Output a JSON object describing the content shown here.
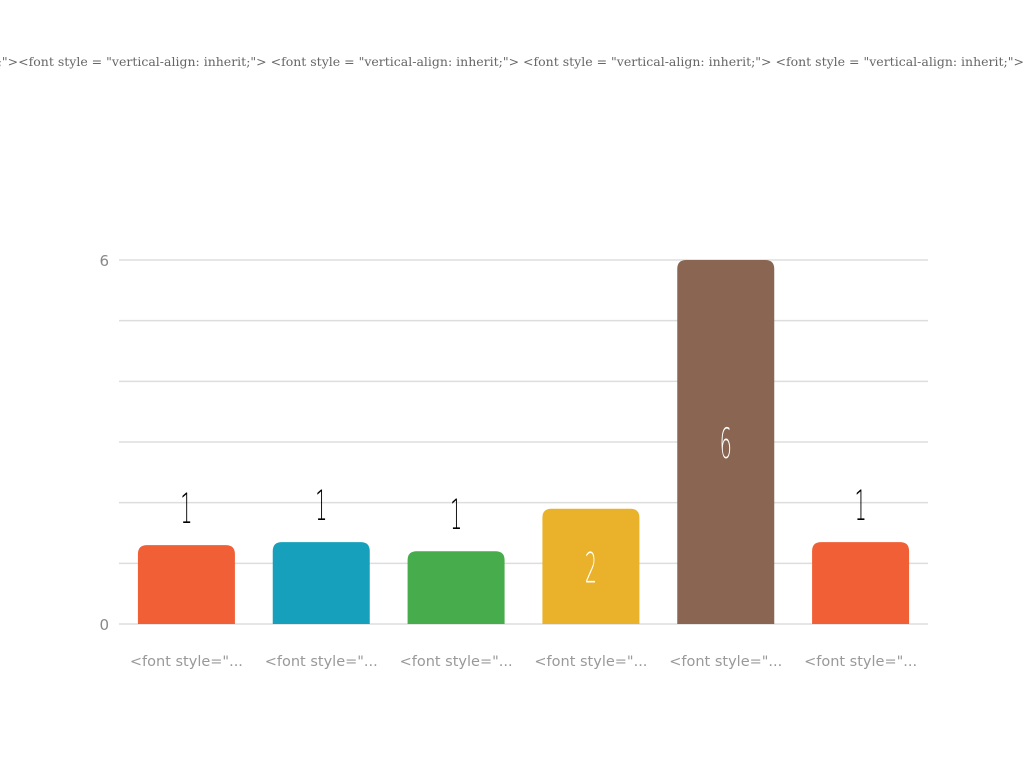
{
  "title": "herit;\"><font style = \"vertical-align: inherit;\"> <font style = \"vertical-align: inherit;\"> <font style = \"vertical-align: inherit;\"> <font style = \"vertical-align: inherit;\">",
  "chart_data": {
    "type": "bar",
    "title": "herit;\"><font style = \"vertical-align: inherit;\"> <font style = \"vertical-align: inherit;\"> <font style = \"vertical-align: inherit;\"> <font style = \"vertical-align: inherit;\">",
    "categories": [
      "<font style=\"...",
      "<font style=\"...",
      "<font style=\"...",
      "<font style=\"...",
      "<font style=\"...",
      "<font style=\"..."
    ],
    "values": [
      1.3,
      1.35,
      1.2,
      1.9,
      6,
      1.35
    ],
    "data_labels": [
      "1",
      "1",
      "1",
      "2",
      "6",
      "1"
    ],
    "colors": [
      "#f05f35",
      "#16a0bb",
      "#47ac4c",
      "#eab12a",
      "#8a6652",
      "#f05f35"
    ],
    "ylim": [
      0,
      6
    ],
    "yticks": [
      0,
      6
    ],
    "grid_lines": 6,
    "grid": true,
    "legend": "none",
    "xlabel": "",
    "ylabel": ""
  }
}
